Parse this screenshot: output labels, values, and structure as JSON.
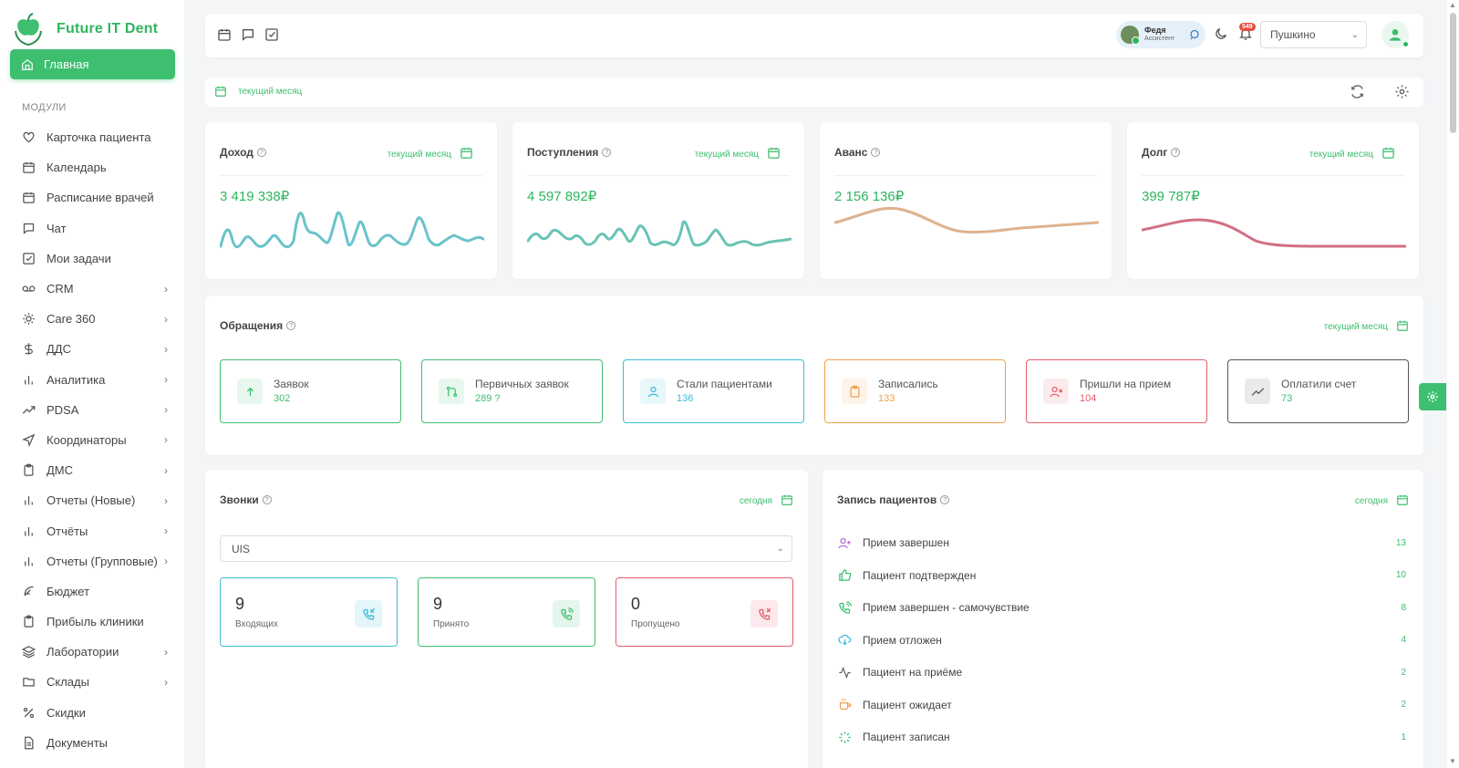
{
  "app": {
    "name": "Future IT Dent"
  },
  "sidebar": {
    "home_label": "Главная",
    "section_label": "МОДУЛИ",
    "items": [
      {
        "label": "Карточка пациента",
        "icon": "heart-icon",
        "chevron": false
      },
      {
        "label": "Календарь",
        "icon": "calendar-icon",
        "chevron": false
      },
      {
        "label": "Расписание врачей",
        "icon": "calendar-icon",
        "chevron": false
      },
      {
        "label": "Чат",
        "icon": "chat-icon",
        "chevron": false
      },
      {
        "label": "Мои задачи",
        "icon": "checkbox-icon",
        "chevron": false
      },
      {
        "label": "CRM",
        "icon": "voicemail-icon",
        "chevron": true
      },
      {
        "label": "Care 360",
        "icon": "sun-icon",
        "chevron": true
      },
      {
        "label": "ДДС",
        "icon": "dollar-icon",
        "chevron": true
      },
      {
        "label": "Аналитика",
        "icon": "bar-chart-icon",
        "chevron": true
      },
      {
        "label": "PDSA",
        "icon": "trend-icon",
        "chevron": true
      },
      {
        "label": "Координаторы",
        "icon": "navigation-icon",
        "chevron": true
      },
      {
        "label": "ДМС",
        "icon": "clipboard-icon",
        "chevron": true
      },
      {
        "label": "Отчеты (Новые)",
        "icon": "bar-chart-icon",
        "chevron": true
      },
      {
        "label": "Отчёты",
        "icon": "bar-chart-icon",
        "chevron": true
      },
      {
        "label": "Отчеты (Групповые)",
        "icon": "bar-chart-icon",
        "chevron": true
      },
      {
        "label": "Бюджет",
        "icon": "feather-icon",
        "chevron": false
      },
      {
        "label": "Прибыль клиники",
        "icon": "clipboard-icon",
        "chevron": false
      },
      {
        "label": "Лаборатории",
        "icon": "layers-icon",
        "chevron": true
      },
      {
        "label": "Склады",
        "icon": "folder-icon",
        "chevron": true
      },
      {
        "label": "Скидки",
        "icon": "percent-icon",
        "chevron": false
      },
      {
        "label": "Документы",
        "icon": "document-icon",
        "chevron": false
      }
    ]
  },
  "topbar": {
    "user_name": "Федя",
    "user_role": "Ассистент",
    "notifications_count": "549",
    "branch": "Пушкино"
  },
  "filter": {
    "period_label": "текущий месяц"
  },
  "finance_cards": [
    {
      "title": "Доход",
      "period": "текущий месяц",
      "amount": "3 419 338₽",
      "color": "#4fb8c0"
    },
    {
      "title": "Поступления",
      "period": "текущий месяц",
      "amount": "4 597 892₽",
      "color": "#4fb8a8"
    },
    {
      "title": "Аванс",
      "period": "",
      "amount": "2 156 136₽",
      "color": "#d8a57a"
    },
    {
      "title": "Долг",
      "period": "текущий месяц",
      "amount": "399 787₽",
      "color": "#c9566e"
    }
  ],
  "appeals": {
    "title": "Обращения",
    "period": "текущий месяц",
    "stats": [
      {
        "label": "Заявок",
        "value": "302",
        "color": "#3dbf6f"
      },
      {
        "label": "Первичных заявок",
        "value": "289 ?",
        "color": "#3dbf6f"
      },
      {
        "label": "Стали пациентами",
        "value": "136",
        "color": "#3bbcd8"
      },
      {
        "label": "Записались",
        "value": "133",
        "color": "#f0a04b"
      },
      {
        "label": "Пришли на прием",
        "value": "104",
        "color": "#e35d6a"
      },
      {
        "label": "Оплатили счет",
        "value": "73",
        "color": "#555555"
      }
    ]
  },
  "calls": {
    "title": "Звонки",
    "period": "сегодня",
    "provider": "UIS",
    "stats": [
      {
        "value": "9",
        "label": "Входящих",
        "color": "#3bbcd8"
      },
      {
        "value": "9",
        "label": "Принято",
        "color": "#3dbf6f"
      },
      {
        "value": "0",
        "label": "Пропущено",
        "color": "#e35d6a"
      }
    ]
  },
  "records": {
    "title": "Запись пациентов",
    "period": "сегодня",
    "items": [
      {
        "label": "Прием завершен",
        "value": "13",
        "color": "#b46ad9"
      },
      {
        "label": "Пациент подтвержден",
        "value": "10",
        "color": "#3dbf6f"
      },
      {
        "label": "Прием завершен - самочувствие",
        "value": "8",
        "color": "#3dbf6f"
      },
      {
        "label": "Прием отложен",
        "value": "4",
        "color": "#3bbcd8"
      },
      {
        "label": "Пациент на приёме",
        "value": "2",
        "color": "#666666"
      },
      {
        "label": "Пациент ожидает",
        "value": "2",
        "color": "#f0a04b"
      },
      {
        "label": "Пациент записан",
        "value": "1",
        "color": "#3dbf6f"
      }
    ]
  }
}
